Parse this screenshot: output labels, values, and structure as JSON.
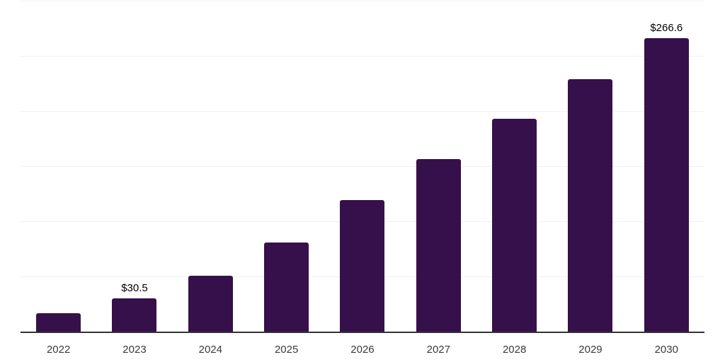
{
  "chart_data": {
    "type": "bar",
    "title": "",
    "xlabel": "",
    "ylabel": "",
    "categories": [
      "2022",
      "2023",
      "2024",
      "2025",
      "2026",
      "2027",
      "2028",
      "2029",
      "2030"
    ],
    "values": [
      17.3,
      30.5,
      51.3,
      81.4,
      119.9,
      157.1,
      193.6,
      229.5,
      266.6
    ],
    "data_labels": [
      "",
      "$30.5",
      "",
      "",
      "",
      "",
      "",
      "",
      "$266.6"
    ],
    "ylim": [
      0,
      300
    ],
    "grid_step": 50,
    "grid": "horizontal-only",
    "legend": "none",
    "y_tick_labels_visible": false,
    "colors": {
      "bar": "#36104A",
      "axis_line": "#333333",
      "gridline": "#F0F0F0",
      "tick_label": "#3A3A3A",
      "data_label": "#000000",
      "background": "#FFFFFF"
    }
  }
}
